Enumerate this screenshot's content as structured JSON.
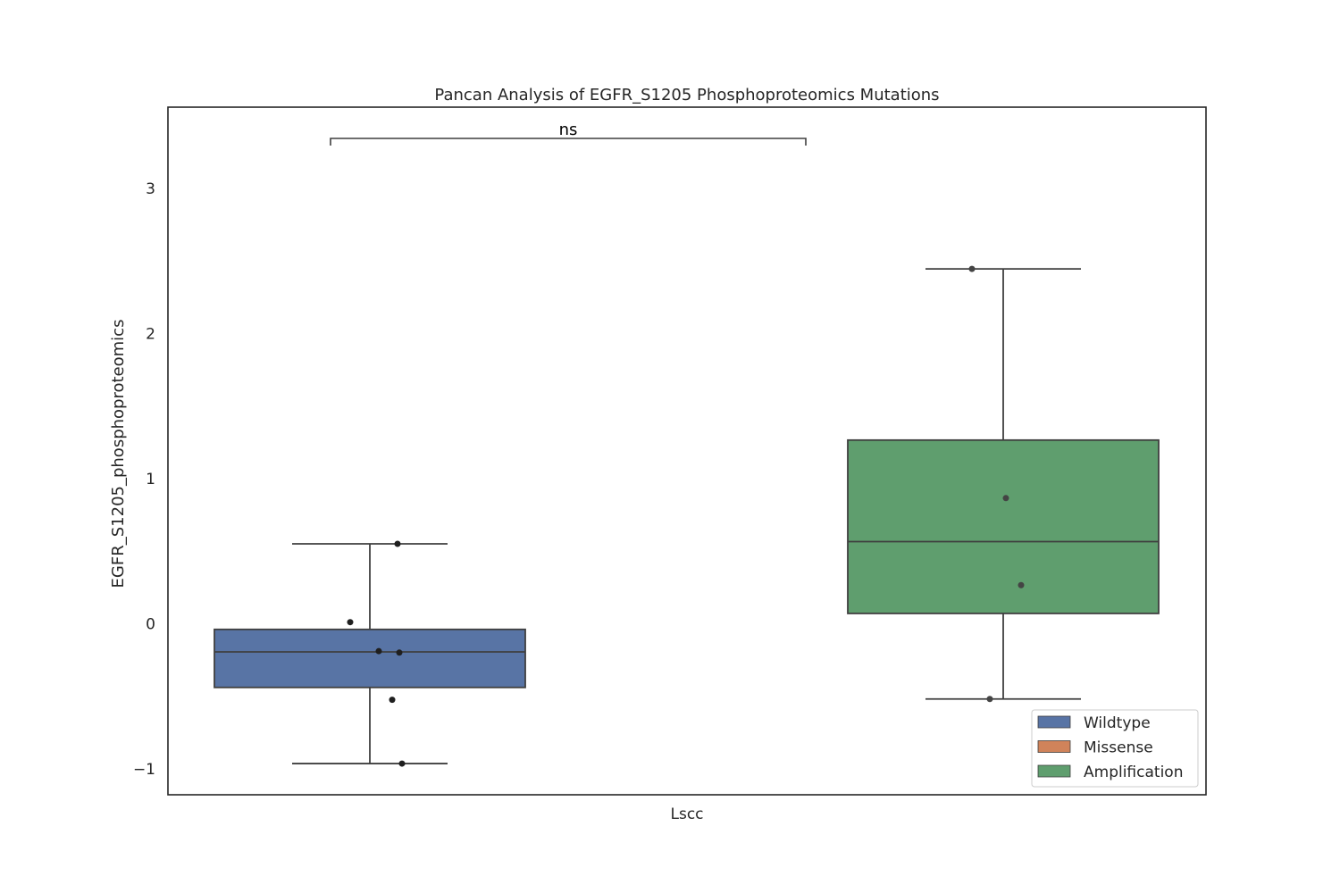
{
  "chart_data": {
    "type": "box",
    "title": "Pancan Analysis of EGFR_S1205 Phosphoproteomics Mutations",
    "xlabel": "",
    "ylabel": "EGFR_S1205_phosphoproteomics",
    "categories": [
      "Lscc"
    ],
    "ylim": [
      -1.18,
      3.56
    ],
    "yticks": [
      -1,
      0,
      1,
      2,
      3
    ],
    "ytick_labels": [
      "−1",
      "0",
      "1",
      "2",
      "3"
    ],
    "grid": false,
    "legend": {
      "position": "lower-right",
      "entries": [
        {
          "name": "Wildtype",
          "color": "#5874a5"
        },
        {
          "name": "Missense",
          "color": "#d0835a"
        },
        {
          "name": "Amplification",
          "color": "#5f9e6e"
        }
      ]
    },
    "series": [
      {
        "name": "Wildtype",
        "color": "#5874a5",
        "box": {
          "whisker_low": -0.965,
          "q1": -0.44,
          "median": -0.195,
          "q3": -0.04,
          "whisker_high": 0.55
        },
        "points": [
          0.55,
          0.01,
          -0.19,
          -0.2,
          -0.525,
          -0.965
        ]
      },
      {
        "name": "Amplification",
        "color": "#5f9e6e",
        "box": {
          "whisker_low": -0.52,
          "q1": 0.07,
          "median": 0.565,
          "q3": 1.265,
          "whisker_high": 2.445
        },
        "points": [
          2.445,
          0.865,
          0.265,
          -0.52
        ]
      }
    ],
    "annotations": [
      {
        "text": "ns",
        "between": [
          "Wildtype",
          "Amplification"
        ]
      }
    ]
  }
}
